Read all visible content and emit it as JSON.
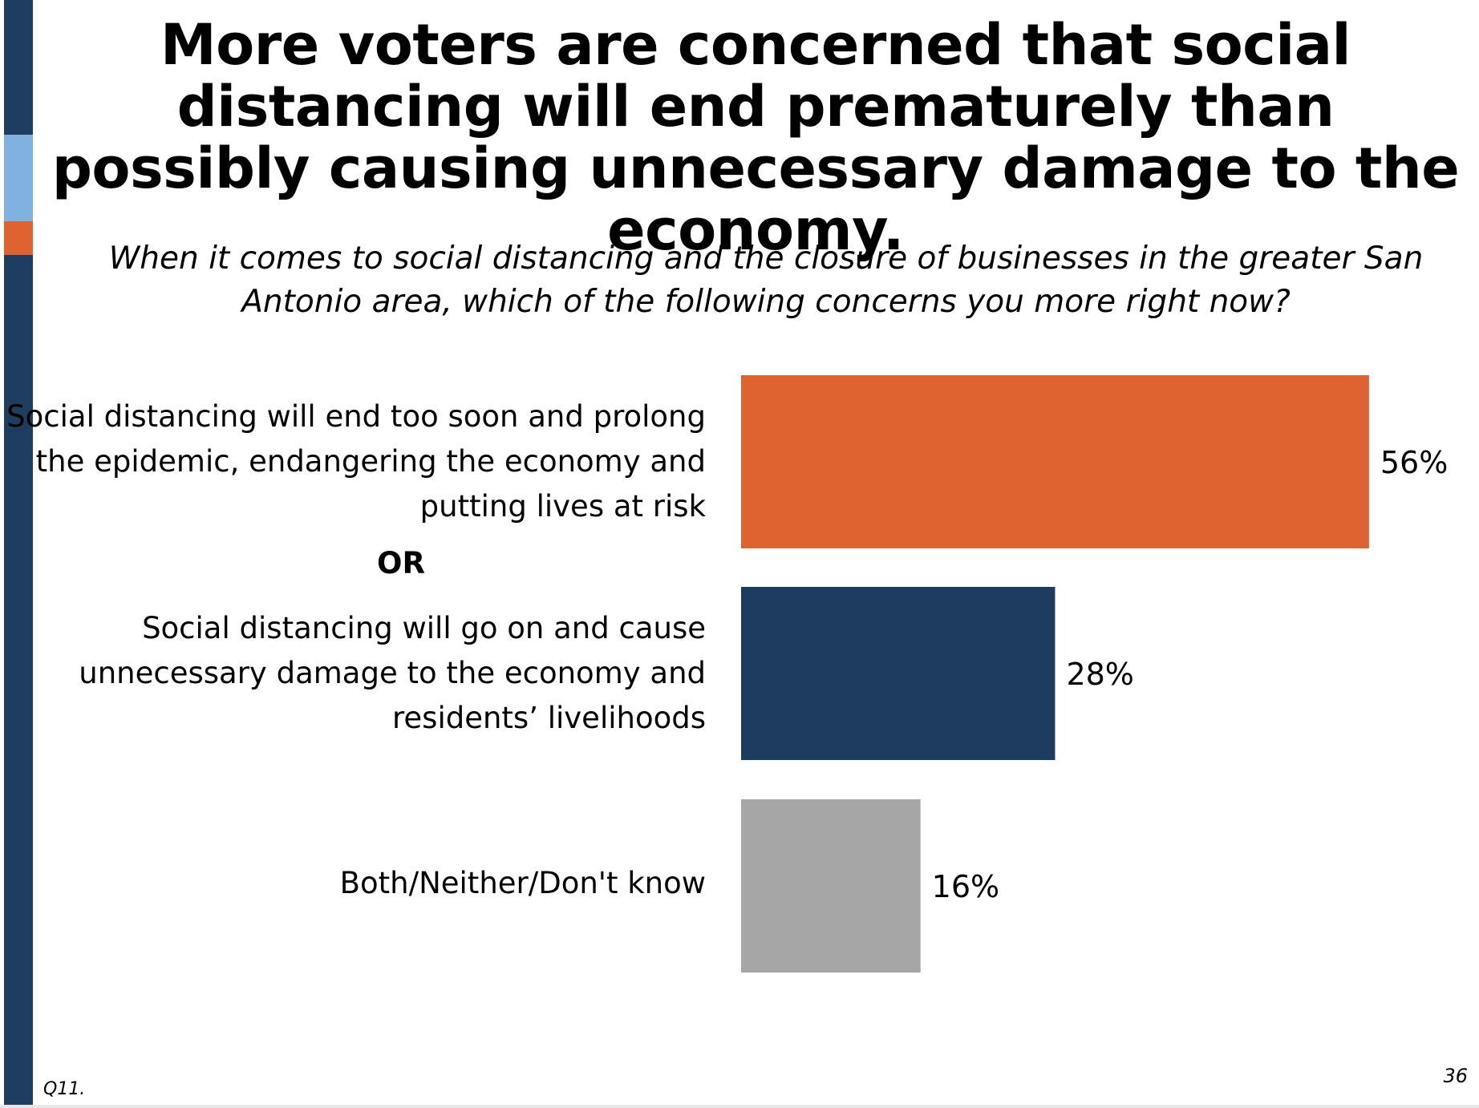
{
  "title": "More voters are concerned that social distancing will end prematurely than possibly causing unnecessary damage to the economy.",
  "question": "When it comes to social distancing and the closure of businesses in the greater San Antonio area, which of the following concerns you more right now?",
  "or_label": "OR",
  "footnote": "Q11.",
  "page_number": "36",
  "colors": {
    "side_dark": "#1f3d5e",
    "side_light": "#7fb2e0",
    "side_orange": "#df6331"
  },
  "chart_data": {
    "type": "bar",
    "orientation": "horizontal",
    "categories": [
      "Social distancing will end too soon and prolong the epidemic, endangering the economy and putting lives at risk",
      "Social distancing will go on and cause unnecessary damage to the economy and residents’ livelihoods",
      "Both/Neither/Don't know"
    ],
    "values": [
      56,
      28,
      16
    ],
    "value_labels": [
      "56%",
      "28%",
      "16%"
    ],
    "colors": [
      "#df6331",
      "#1e3c5f",
      "#a6a6a6"
    ],
    "unit": "%",
    "xlim": [
      0,
      100
    ],
    "grid": false,
    "legend": "none"
  }
}
